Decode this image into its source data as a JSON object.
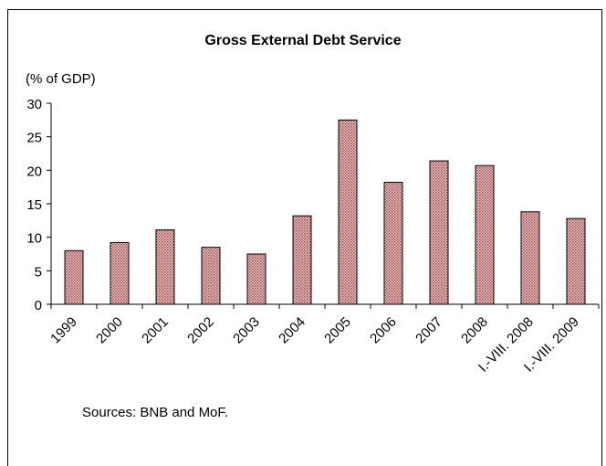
{
  "chart_data": {
    "type": "bar",
    "title": "Gross External Debt Service",
    "ylabel": "(% of GDP)",
    "xlabel": "",
    "categories": [
      "1999",
      "2000",
      "2001",
      "2002",
      "2003",
      "2004",
      "2005",
      "2006",
      "2007",
      "2008",
      "I.-VIII. 2008",
      "I.-VIII. 2009"
    ],
    "values": [
      8.0,
      9.2,
      11.1,
      8.5,
      7.5,
      13.2,
      27.5,
      18.2,
      21.4,
      20.7,
      13.8,
      12.8
    ],
    "ylim": [
      0,
      30
    ],
    "yticks": [
      0,
      5,
      10,
      15,
      20,
      25,
      30
    ],
    "grid": false,
    "legend": "none",
    "bar_color": "#c08080",
    "bar_pattern_color": "#8b3a3a",
    "source": "Sources: BNB and MoF."
  }
}
